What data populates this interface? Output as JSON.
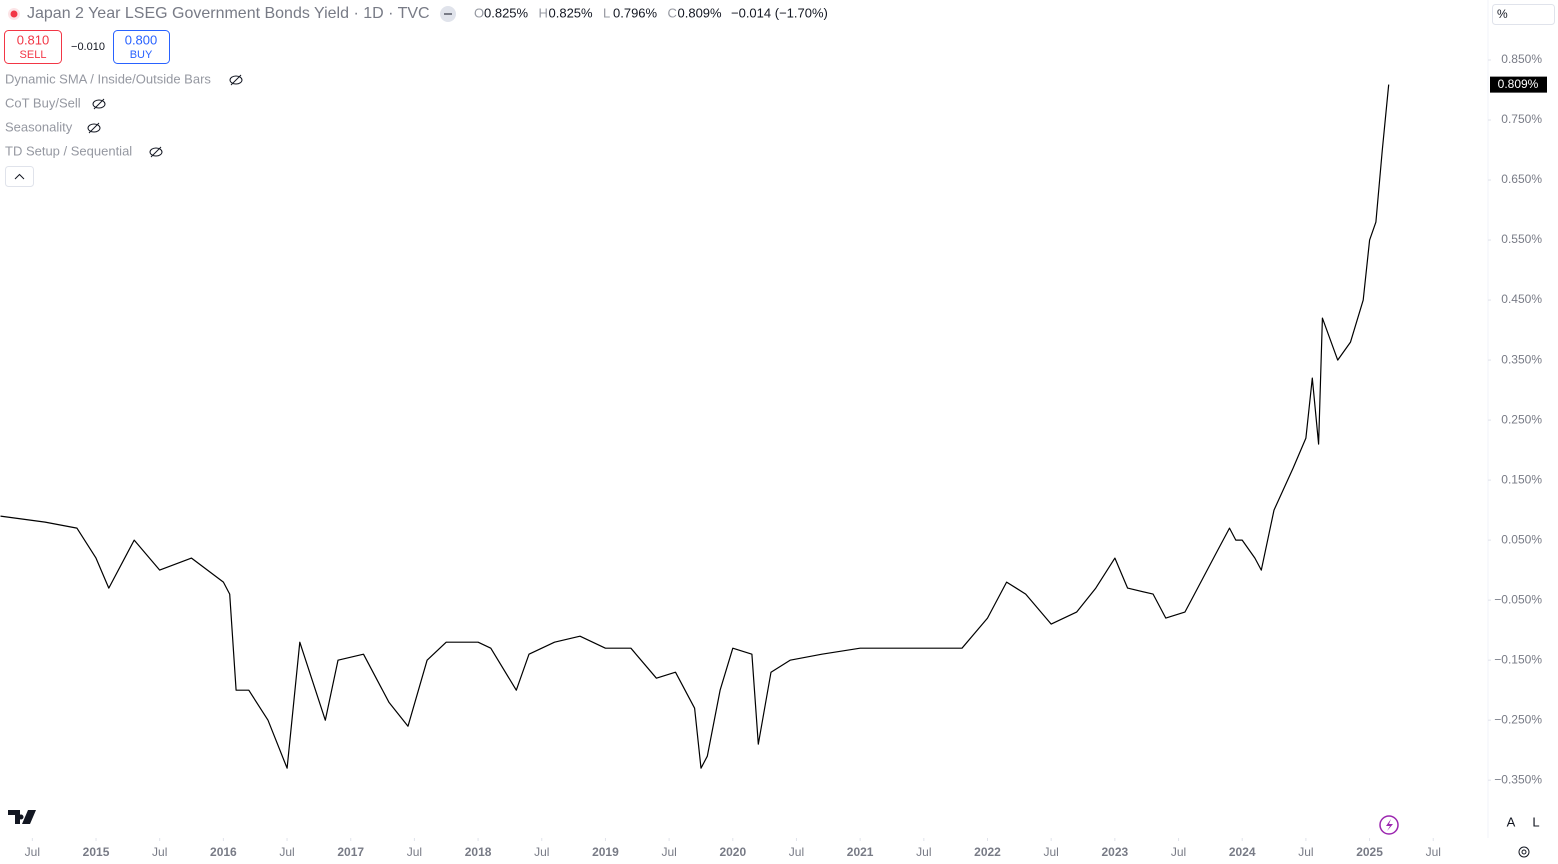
{
  "header": {
    "title": "Japan 2 Year LSEG Government Bonds Yield · 1D · TVC",
    "ohlc": [
      {
        "k": "O",
        "v": "0.825%"
      },
      {
        "k": "H",
        "v": "0.825%"
      },
      {
        "k": "L",
        "v": "0.796%"
      },
      {
        "k": "C",
        "v": "0.809%"
      }
    ],
    "change": "−0.014 (−1.70%)",
    "sell_price": "0.810",
    "sell_label": "SELL",
    "spread": "−0.010",
    "buy_price": "0.800",
    "buy_label": "BUY",
    "indicators": [
      "Dynamic SMA / Inside/Outside Bars",
      "CoT Buy/Sell",
      "Seasonality",
      "TD Setup / Sequential"
    ],
    "unit": "%",
    "scale_buttons": [
      "A",
      "L"
    ]
  },
  "chart_data": {
    "type": "line",
    "color": "#000000",
    "x": [
      2014.25,
      2014.6,
      2014.85,
      2015.0,
      2015.1,
      2015.3,
      2015.5,
      2015.75,
      2016.0,
      2016.05,
      2016.1,
      2016.2,
      2016.35,
      2016.5,
      2016.6,
      2016.8,
      2016.9,
      2017.1,
      2017.3,
      2017.45,
      2017.6,
      2017.75,
      2018.0,
      2018.1,
      2018.3,
      2018.4,
      2018.6,
      2018.8,
      2019.0,
      2019.2,
      2019.4,
      2019.55,
      2019.7,
      2019.75,
      2019.8,
      2019.9,
      2020.0,
      2020.15,
      2020.2,
      2020.3,
      2020.45,
      2020.7,
      2021.0,
      2021.3,
      2021.6,
      2021.8,
      2022.0,
      2022.15,
      2022.3,
      2022.5,
      2022.7,
      2022.85,
      2023.0,
      2023.1,
      2023.3,
      2023.4,
      2023.55,
      2023.6,
      2023.7,
      2023.8,
      2023.9,
      2023.95,
      2024.0,
      2024.1,
      2024.15,
      2024.25,
      2024.4,
      2024.5,
      2024.55,
      2024.6,
      2024.63,
      2024.75,
      2024.85,
      2024.95,
      2025.0,
      2025.05,
      2025.1,
      2025.15
    ],
    "values": [
      0.09,
      0.08,
      0.07,
      0.02,
      -0.03,
      0.05,
      0.0,
      0.02,
      -0.02,
      -0.04,
      -0.2,
      -0.2,
      -0.25,
      -0.33,
      -0.12,
      -0.25,
      -0.15,
      -0.14,
      -0.22,
      -0.26,
      -0.15,
      -0.12,
      -0.12,
      -0.13,
      -0.2,
      -0.14,
      -0.12,
      -0.11,
      -0.13,
      -0.13,
      -0.18,
      -0.17,
      -0.23,
      -0.33,
      -0.31,
      -0.2,
      -0.13,
      -0.14,
      -0.29,
      -0.17,
      -0.15,
      -0.14,
      -0.13,
      -0.13,
      -0.13,
      -0.13,
      -0.08,
      -0.02,
      -0.04,
      -0.09,
      -0.07,
      -0.03,
      0.02,
      -0.03,
      -0.04,
      -0.08,
      -0.07,
      -0.05,
      -0.01,
      0.03,
      0.07,
      0.05,
      0.05,
      0.02,
      0.0,
      0.1,
      0.17,
      0.22,
      0.32,
      0.21,
      0.42,
      0.35,
      0.38,
      0.45,
      0.55,
      0.58,
      0.7,
      0.809
    ],
    "xlim": [
      2014.246,
      2025.93
    ],
    "xticks": [
      {
        "value": 2014.5,
        "label": "Jul"
      },
      2015,
      {
        "value": 2015.5,
        "label": "Jul"
      },
      2016,
      {
        "value": 2016.5,
        "label": "Jul"
      },
      2017,
      {
        "value": 2017.5,
        "label": "Jul"
      },
      2018,
      {
        "value": 2018.5,
        "label": "Jul"
      },
      2019,
      {
        "value": 2019.5,
        "label": "Jul"
      },
      2020,
      {
        "value": 2020.5,
        "label": "Jul"
      },
      2021,
      {
        "value": 2021.5,
        "label": "Jul"
      },
      2022,
      {
        "value": 2022.5,
        "label": "Jul"
      },
      2023,
      {
        "value": 2023.5,
        "label": "Jul"
      },
      2024,
      {
        "value": 2024.5,
        "label": "Jul"
      },
      2025,
      {
        "value": 2025.5,
        "label": "Jul"
      }
    ],
    "ylim": [
      -0.443,
      0.95
    ],
    "yticks": [
      {
        "value": 0.85,
        "label": "0.850%"
      },
      {
        "value": 0.75,
        "label": "0.750%"
      },
      {
        "value": 0.65,
        "label": "0.650%"
      },
      {
        "value": 0.55,
        "label": "0.550%"
      },
      {
        "value": 0.45,
        "label": "0.450%"
      },
      {
        "value": 0.35,
        "label": "0.350%"
      },
      {
        "value": 0.25,
        "label": "0.250%"
      },
      {
        "value": 0.15,
        "label": "0.150%"
      },
      {
        "value": 0.05,
        "label": "0.050%"
      },
      {
        "value": -0.05,
        "label": "−0.050%"
      },
      {
        "value": -0.15,
        "label": "−0.150%"
      },
      {
        "value": -0.25,
        "label": "−0.250%"
      },
      {
        "value": -0.35,
        "label": "−0.350%"
      }
    ],
    "last_value": {
      "value": 0.809,
      "label": "0.809%"
    },
    "grid": false
  }
}
